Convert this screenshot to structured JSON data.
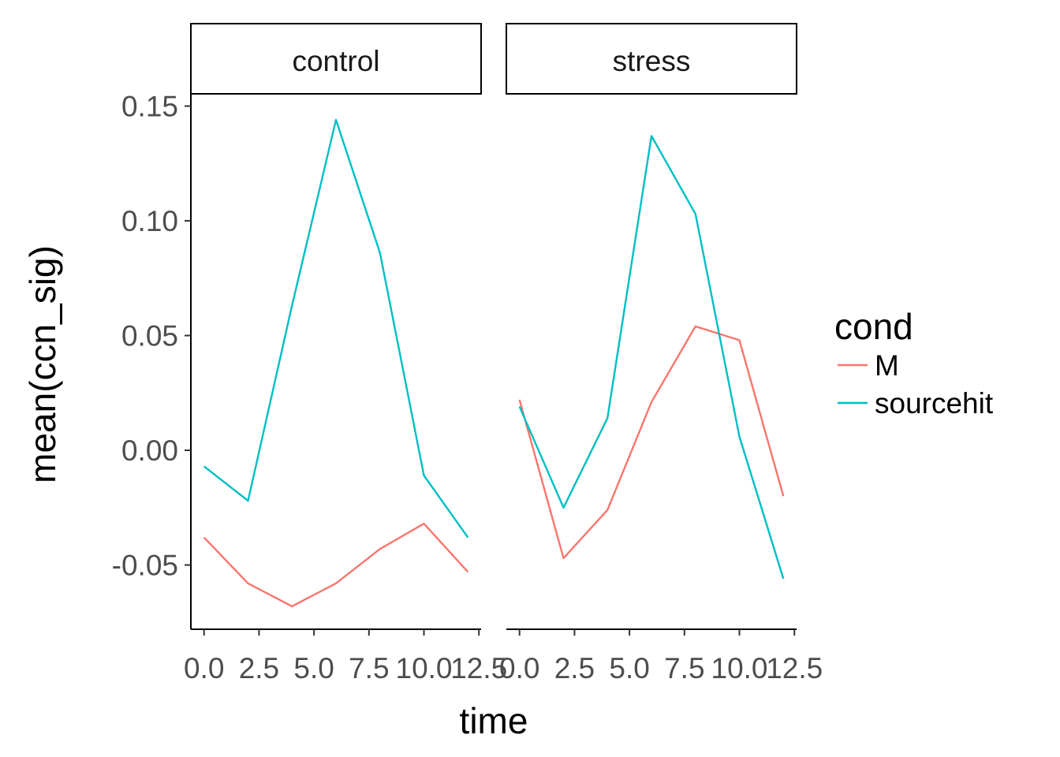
{
  "chart_data": {
    "type": "line",
    "xlabel": "time",
    "ylabel": "mean(ccn_sig)",
    "xlim": [
      -0.6,
      12.6
    ],
    "ylim": [
      -0.078,
      0.155
    ],
    "x_ticks": [
      0.0,
      2.5,
      5.0,
      7.5,
      10.0,
      12.5
    ],
    "x_tick_labels": [
      "0.0",
      "2.5",
      "5.0",
      "7.5",
      "10.0",
      "12.5"
    ],
    "y_ticks": [
      -0.05,
      0.0,
      0.05,
      0.1,
      0.15
    ],
    "y_tick_labels": [
      "-0.05",
      "0.00",
      "0.05",
      "0.10",
      "0.15"
    ],
    "grid": false,
    "legend": {
      "title": "cond",
      "position": "right",
      "entries": [
        {
          "label": "M",
          "color": "#F8766D"
        },
        {
          "label": "sourcehit",
          "color": "#00BFC4"
        }
      ]
    },
    "x": [
      0,
      2,
      4,
      6,
      8,
      10,
      12
    ],
    "panels": [
      {
        "strip": "control",
        "series": [
          {
            "name": "M",
            "values": [
              -0.038,
              -0.058,
              -0.068,
              -0.058,
              -0.043,
              -0.032,
              -0.053
            ]
          },
          {
            "name": "sourcehit",
            "values": [
              -0.007,
              -0.022,
              0.063,
              0.144,
              0.086,
              -0.011,
              -0.038
            ]
          }
        ]
      },
      {
        "strip": "stress",
        "series": [
          {
            "name": "M",
            "values": [
              0.022,
              -0.047,
              -0.026,
              0.021,
              0.054,
              0.048,
              -0.02
            ]
          },
          {
            "name": "sourcehit",
            "values": [
              0.019,
              -0.025,
              0.014,
              0.137,
              0.103,
              0.006,
              -0.056
            ]
          }
        ]
      }
    ]
  }
}
